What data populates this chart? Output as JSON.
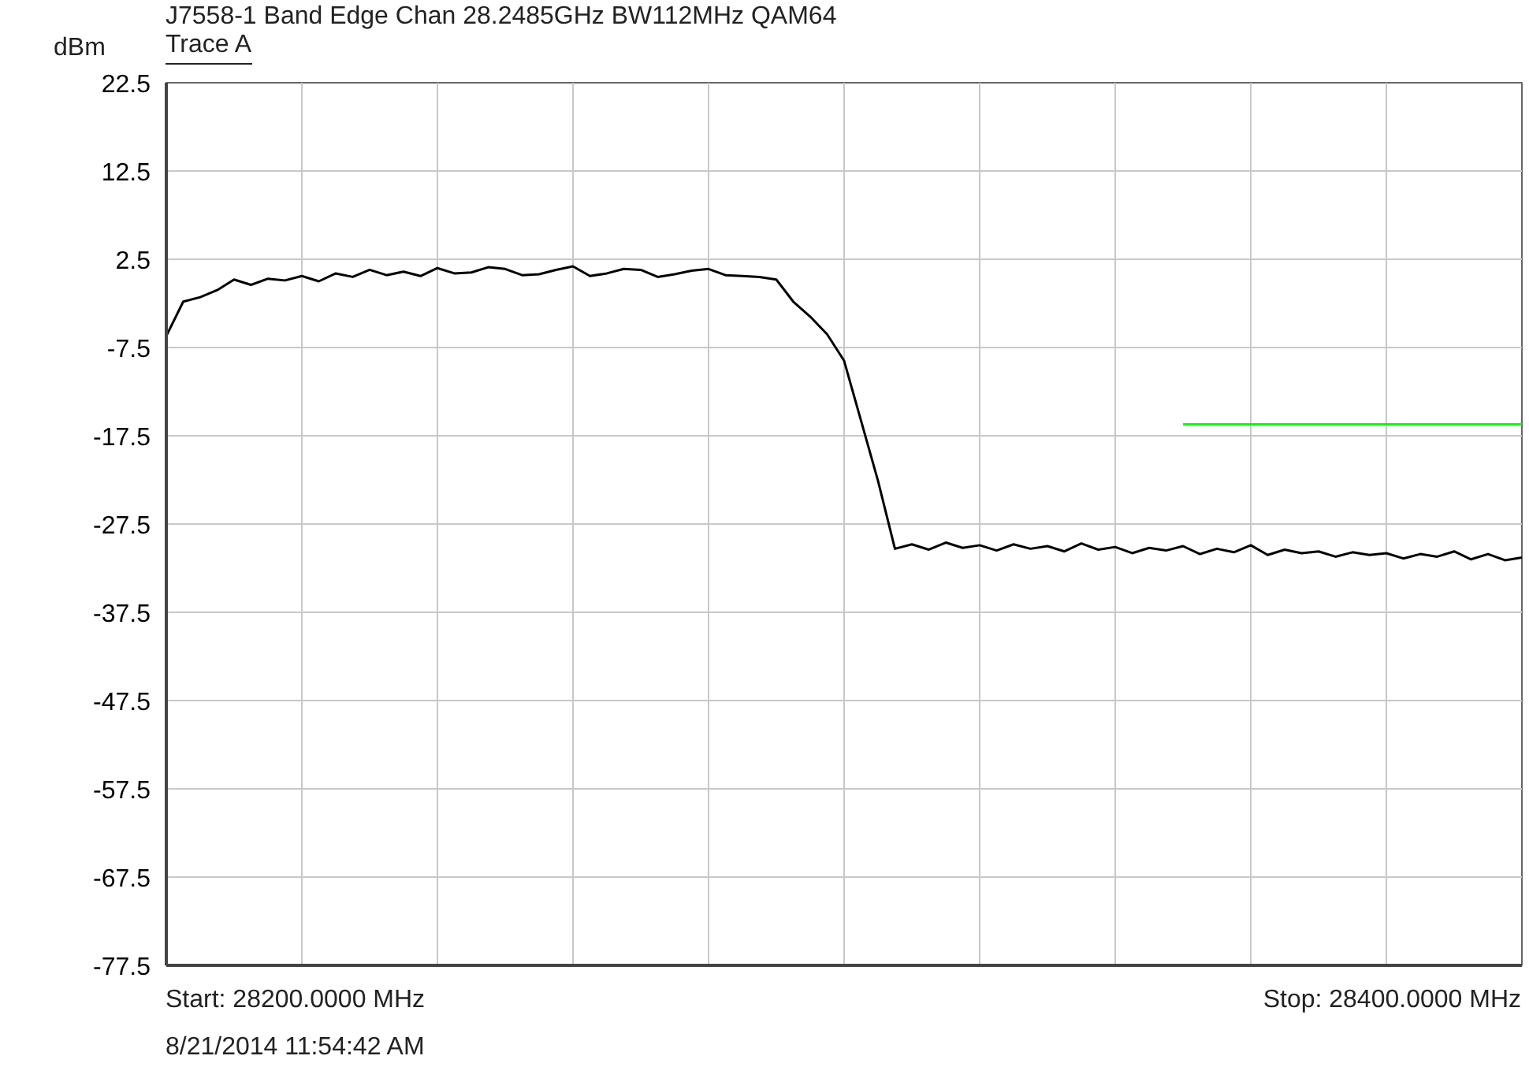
{
  "chart_data": {
    "type": "line",
    "title": "J7558-1 Band Edge Chan 28.2485GHz BW112MHz QAM64",
    "ylabel": "dBm",
    "annotations": [
      "Trace A",
      "Start: 28200.0000 MHz",
      "Stop: 28400.0000 MHz",
      "8/21/2014 11:54:42 AM"
    ],
    "categories": [
      null,
      null,
      null,
      null,
      null,
      null,
      null,
      null,
      null,
      null,
      null,
      null,
      null,
      null,
      null,
      null,
      null,
      null,
      null,
      null,
      null,
      null,
      null,
      null,
      null,
      null,
      null,
      null,
      null,
      null,
      null,
      null,
      null,
      null,
      null,
      null,
      null,
      null,
      null,
      null,
      null,
      null,
      null,
      null,
      null,
      null,
      null,
      null,
      null,
      null,
      null,
      null,
      null,
      null,
      null,
      null,
      null,
      null,
      null,
      null,
      null,
      null,
      null,
      null,
      null,
      null,
      null,
      null,
      null,
      null,
      null,
      null,
      null,
      null,
      null,
      null,
      null,
      null,
      null,
      null,
      null
    ],
    "series": [
      {
        "color": "#000000",
        "values": [
          -6.2,
          -2.3,
          -1.8,
          -1.0,
          0.2,
          -0.4,
          0.3,
          0.1,
          0.6,
          0.0,
          0.9,
          0.5,
          1.3,
          0.7,
          1.1,
          0.6,
          1.5,
          0.9,
          1.0,
          1.6,
          1.4,
          0.7,
          0.8,
          1.3,
          1.7,
          0.6,
          0.9,
          1.4,
          1.3,
          0.5,
          0.8,
          1.2,
          1.4,
          0.7,
          0.6,
          0.5,
          0.2,
          -2.3,
          -4.0,
          -6.0,
          -9.0,
          -15.8,
          -22.6,
          -30.3,
          -29.8,
          -30.4,
          -29.6,
          -30.2,
          -29.9,
          -30.5,
          -29.8,
          -30.3,
          -30.0,
          -30.6,
          -29.7,
          -30.4,
          -30.1,
          -30.8,
          -30.2,
          -30.5,
          -30.0,
          -30.9,
          -30.3,
          -30.7,
          -29.9,
          -31.0,
          -30.4,
          -30.8,
          -30.6,
          -31.2,
          -30.7,
          -31.0,
          -30.8,
          -31.4,
          -30.9,
          -31.2,
          -30.6,
          -31.5,
          -30.9,
          -31.6,
          -31.3
        ]
      },
      {
        "color": "#00ff00",
        "values": [
          null,
          null,
          null,
          null,
          null,
          null,
          null,
          null,
          null,
          null,
          null,
          null,
          null,
          null,
          null,
          null,
          null,
          null,
          null,
          null,
          null,
          null,
          null,
          null,
          null,
          null,
          null,
          null,
          null,
          null,
          null,
          null,
          null,
          null,
          null,
          null,
          null,
          null,
          null,
          null,
          null,
          null,
          null,
          null,
          null,
          null,
          null,
          null,
          null,
          null,
          null,
          null,
          null,
          null,
          null,
          null,
          null,
          null,
          null,
          null,
          -16.2,
          -16.2,
          -16.2,
          -16.2,
          -16.2,
          -16.2,
          -16.2,
          -16.2,
          -16.2,
          -16.2,
          -16.2,
          -16.2,
          -16.2,
          -16.2,
          -16.2,
          -16.2,
          -16.2,
          -16.2,
          -16.2,
          -16.2,
          -16.2
        ]
      }
    ],
    "ylim": [
      -77.5,
      22.5
    ],
    "yticks": [
      -77.5,
      -67.5,
      -57.5,
      -47.5,
      -37.5,
      -27.5,
      -17.5,
      -7.5,
      2.5,
      12.5,
      22.5
    ],
    "grid": true,
    "tick_labels": "y",
    "marker": "none",
    "line_style": "solid"
  }
}
